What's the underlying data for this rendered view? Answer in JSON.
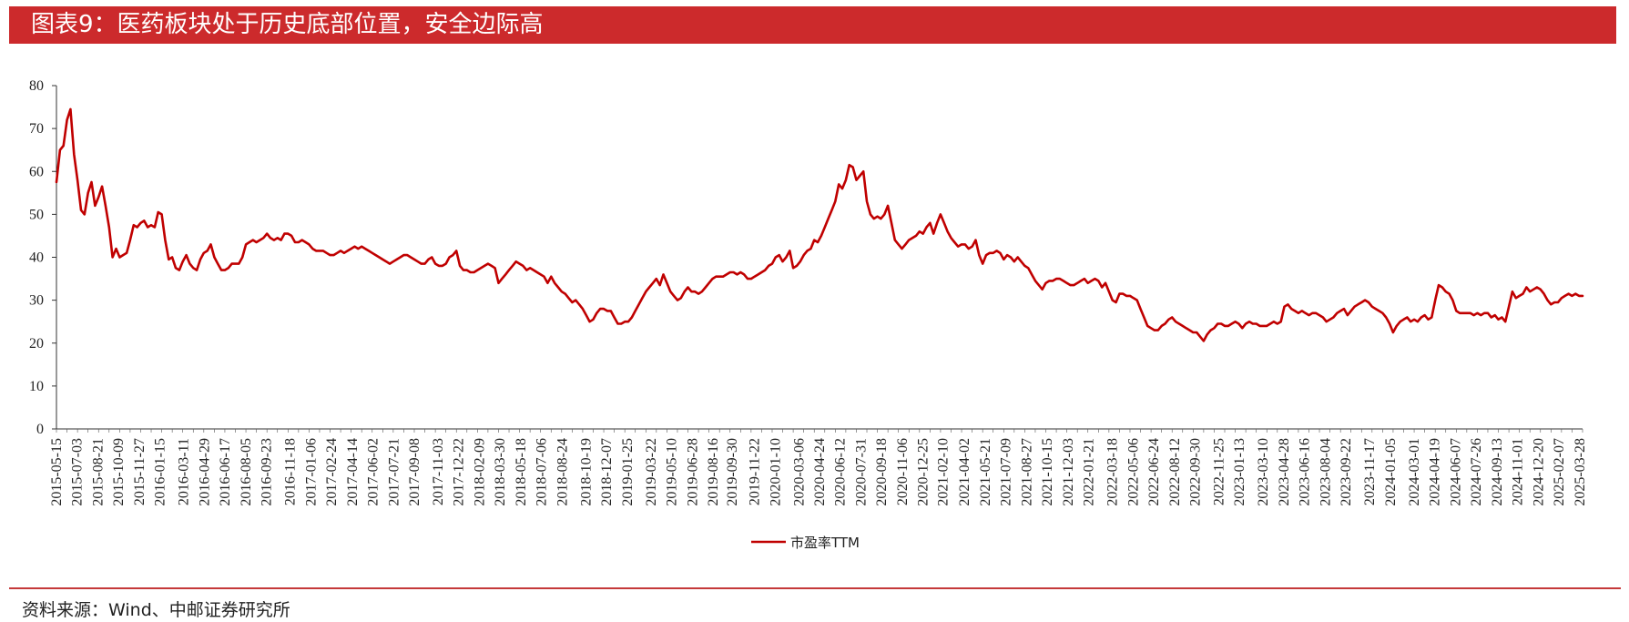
{
  "header": {
    "title": "图表9：医药板块处于历史底部位置，安全边际高"
  },
  "footer": {
    "source": "资料来源：Wind、中邮证券研究所"
  },
  "colors": {
    "accent": "#cc2a2c",
    "series": "#c00000"
  },
  "chart_data": {
    "type": "line",
    "title": "",
    "xlabel": "",
    "ylabel": "",
    "ylim": [
      0,
      80
    ],
    "yticks": [
      0,
      10,
      20,
      30,
      40,
      50,
      60,
      70,
      80
    ],
    "grid": false,
    "legend_position": "bottom-center",
    "xtick_labels": [
      "2015-05-15",
      "2015-07-03",
      "2015-08-21",
      "2015-10-09",
      "2015-11-27",
      "2016-01-15",
      "2016-03-11",
      "2016-04-29",
      "2016-06-17",
      "2016-08-05",
      "2016-09-23",
      "2016-11-18",
      "2017-01-06",
      "2017-02-24",
      "2017-04-14",
      "2017-06-02",
      "2017-07-21",
      "2017-09-08",
      "2017-11-03",
      "2017-12-22",
      "2018-02-09",
      "2018-03-30",
      "2018-05-18",
      "2018-07-06",
      "2018-08-24",
      "2018-10-19",
      "2018-12-07",
      "2019-01-25",
      "2019-03-22",
      "2019-05-10",
      "2019-06-28",
      "2019-08-16",
      "2019-09-30",
      "2019-11-22",
      "2020-01-10",
      "2020-03-06",
      "2020-04-24",
      "2020-06-12",
      "2020-07-31",
      "2020-09-18",
      "2020-11-06",
      "2020-12-25",
      "2021-02-10",
      "2021-04-02",
      "2021-05-21",
      "2021-07-09",
      "2021-08-27",
      "2021-10-15",
      "2021-12-03",
      "2022-01-21",
      "2022-03-18",
      "2022-05-06",
      "2022-06-24",
      "2022-08-12",
      "2022-09-30",
      "2022-11-25",
      "2023-01-13",
      "2023-03-10",
      "2023-04-28",
      "2023-06-16",
      "2023-08-04",
      "2023-09-22",
      "2023-11-17",
      "2024-01-05",
      "2024-03-01",
      "2024-04-19",
      "2024-06-07",
      "2024-07-26",
      "2024-09-13",
      "2024-11-01",
      "2024-12-20",
      "2025-02-07",
      "2025-03-28"
    ],
    "series": [
      {
        "name": "市盈率TTM",
        "x_start": "2015-05-15",
        "x_end": "2025-04-04",
        "values": [
          57.5,
          65,
          66,
          72,
          74.5,
          64,
          58,
          51,
          50,
          55,
          57.5,
          52,
          54,
          56.5,
          52,
          47,
          40,
          42,
          40,
          40.5,
          41,
          44,
          47.5,
          47,
          48,
          48.5,
          47,
          47.5,
          47,
          50.5,
          50,
          44,
          39.5,
          40,
          37.5,
          37,
          39,
          40.5,
          38.5,
          37.5,
          37,
          39.5,
          41,
          41.5,
          43,
          40,
          38.5,
          37,
          37,
          37.5,
          38.5,
          38.5,
          38.5,
          40,
          43,
          43.5,
          44,
          43.5,
          44,
          44.5,
          45.5,
          44.5,
          44,
          44.5,
          44,
          45.5,
          45.5,
          45,
          43.5,
          43.5,
          44,
          43.5,
          43,
          42,
          41.5,
          41.5,
          41.5,
          41,
          40.5,
          40.5,
          41,
          41.5,
          41,
          41.5,
          42,
          42.5,
          42,
          42.5,
          42,
          41.5,
          41,
          40.5,
          40,
          39.5,
          39,
          38.5,
          39,
          39.5,
          40,
          40.5,
          40.5,
          40,
          39.5,
          39,
          38.5,
          38.5,
          39.5,
          40,
          38.5,
          38,
          38,
          38.5,
          40,
          40.5,
          41.5,
          38,
          37,
          37,
          36.5,
          36.5,
          37,
          37.5,
          38,
          38.5,
          38,
          37.5,
          34,
          35,
          36,
          37,
          38,
          39,
          38.5,
          38,
          37,
          37.5,
          37,
          36.5,
          36,
          35.5,
          34,
          35.5,
          34,
          33,
          32,
          31.5,
          30.5,
          29.5,
          30,
          29,
          28,
          26.5,
          25,
          25.5,
          27,
          28,
          28,
          27.5,
          27.5,
          26,
          24.5,
          24.5,
          25,
          25,
          26,
          27.5,
          29,
          30.5,
          32,
          33,
          34,
          35,
          33.5,
          36,
          34,
          32,
          31,
          30,
          30.5,
          32,
          33,
          32,
          32,
          31.5,
          32,
          33,
          34,
          35,
          35.5,
          35.5,
          35.5,
          36,
          36.5,
          36.5,
          36,
          36.5,
          36,
          35,
          35,
          35.5,
          36,
          36.5,
          37,
          38,
          38.5,
          40,
          40.5,
          39,
          40,
          41.5,
          37.5,
          38,
          39,
          40.5,
          41.5,
          42,
          44,
          43.5,
          45,
          47,
          49,
          51,
          53,
          57,
          56,
          58,
          61.5,
          61,
          58,
          59,
          60,
          53,
          50,
          49,
          49.5,
          49,
          50,
          52,
          48,
          44,
          43,
          42,
          43,
          44,
          44.5,
          45,
          46,
          45.5,
          47,
          48,
          45.5,
          48,
          50,
          48,
          46,
          44.5,
          43.5,
          42.5,
          43,
          43,
          42,
          42.5,
          44,
          40.5,
          38.5,
          40.5,
          41,
          41,
          41.5,
          41,
          39.5,
          40.5,
          40,
          39,
          40,
          39,
          38,
          37.5,
          36,
          34.5,
          33.5,
          32.5,
          34,
          34.5,
          34.5,
          35,
          35,
          34.5,
          34,
          33.5,
          33.5,
          34,
          34.5,
          35,
          34,
          34.5,
          35,
          34.5,
          33,
          34,
          32,
          30,
          29.5,
          31.5,
          31.5,
          31,
          31,
          30.5,
          30,
          28,
          26,
          24,
          23.5,
          23,
          23,
          24,
          24.5,
          25.5,
          26,
          25,
          24.5,
          24,
          23.5,
          23,
          22.5,
          22.5,
          21.5,
          20.5,
          22,
          23,
          23.5,
          24.5,
          24.5,
          24,
          24,
          24.5,
          25,
          24.5,
          23.5,
          24.5,
          25,
          24.5,
          24.5,
          24,
          24,
          24,
          24.5,
          25,
          24.5,
          25,
          28.5,
          29,
          28,
          27.5,
          27,
          27.5,
          27,
          26.5,
          27,
          27,
          26.5,
          26,
          25,
          25.5,
          26,
          27,
          27.5,
          28,
          26.5,
          27.5,
          28.5,
          29,
          29.5,
          30,
          29.5,
          28.5,
          28,
          27.5,
          27,
          26,
          24.5,
          22.5,
          24,
          25,
          25.5,
          26,
          25,
          25.5,
          25,
          26,
          26.5,
          25.5,
          26,
          30,
          33.5,
          33,
          32,
          31.5,
          30,
          27.5,
          27,
          27,
          27,
          27,
          26.5,
          27,
          26.5,
          27,
          27,
          26,
          26.5,
          25.5,
          26,
          25,
          28.5,
          32,
          30.5,
          31,
          31.5,
          33,
          32,
          32.5,
          33,
          32.5,
          31.5,
          30,
          29,
          29.5,
          29.5,
          30.5,
          31,
          31.5,
          31,
          31.5,
          31,
          31
        ]
      }
    ]
  }
}
